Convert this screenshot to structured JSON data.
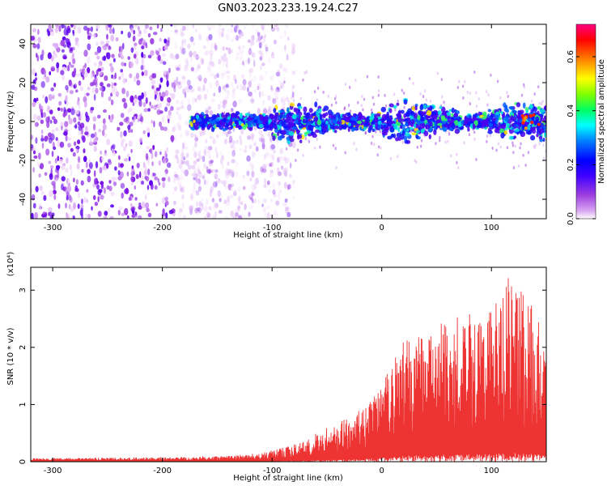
{
  "title": "GN03.2023.233.19.24.C27",
  "chart_data": [
    {
      "type": "heatmap",
      "xlabel": "Height of straight line (km)",
      "ylabel": "Frequency (Hz)",
      "xlim": [
        -320,
        150
      ],
      "ylim": [
        -50,
        50
      ],
      "xticks": [
        -300,
        -200,
        -100,
        0,
        100
      ],
      "yticks": [
        -40,
        -20,
        0,
        20,
        40
      ],
      "colorbar": {
        "label": "Normalized spectral amplitude",
        "range": [
          0.0,
          0.72
        ],
        "ticks": [
          "0.0",
          "0.2",
          "0.4",
          "0.6"
        ],
        "colormap": [
          "#ffffff",
          "#e6b3f5",
          "#a040e0",
          "#6a00e8",
          "#0000ff",
          "#00ffff",
          "#00ff00",
          "#ffff00",
          "#ff8000",
          "#ff0000",
          "#ff00aa"
        ]
      },
      "description_values": {
        "noise_region_km": [
          -320,
          -90
        ],
        "signal_band_hz": [
          -8,
          8
        ],
        "signal_start_km": -175,
        "peak_amplitude_km": 130
      }
    },
    {
      "type": "line",
      "xlabel": "Height of straight line (km)",
      "ylabel": "SNR (10 * v/v)",
      "scale_note": "(x10⁴)",
      "xlim": [
        -320,
        150
      ],
      "ylim": [
        0,
        3.4
      ],
      "xticks": [
        -300,
        -200,
        -100,
        0,
        100
      ],
      "yticks": [
        0,
        1,
        2,
        3
      ],
      "series": [
        {
          "color": "#ee3333",
          "envelope_x": [
            -320,
            -250,
            -200,
            -150,
            -110,
            -80,
            -60,
            -40,
            -20,
            0,
            20,
            40,
            60,
            80,
            100,
            120,
            150
          ],
          "envelope_y": [
            0.06,
            0.07,
            0.08,
            0.1,
            0.15,
            0.3,
            0.5,
            0.7,
            0.9,
            1.4,
            2.1,
            2.3,
            2.5,
            2.6,
            2.7,
            3.4,
            2.2
          ]
        }
      ]
    }
  ]
}
